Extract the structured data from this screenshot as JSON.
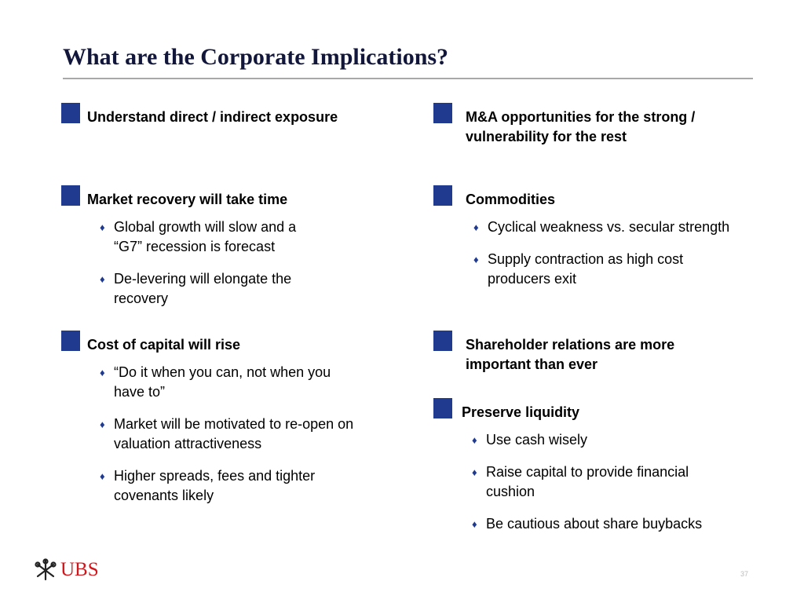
{
  "title": "What are the Corporate Implications?",
  "colors": {
    "square": "#1f3a8f",
    "logo_red": "#d0161b",
    "title": "#11163a"
  },
  "left_column": [
    {
      "heading": "Understand direct / indirect exposure",
      "bullets": []
    },
    {
      "heading": "Market recovery will take time",
      "bullets": [
        "Global growth will slow and a “G7” recession is forecast",
        "De-levering will elongate the recovery"
      ]
    },
    {
      "heading": "Cost of capital will rise",
      "bullets": [
        "“Do it when you can, not when you have to”",
        "Market will be motivated to re-open on valuation attractiveness",
        "Higher spreads, fees and tighter covenants likely"
      ]
    }
  ],
  "right_column": [
    {
      "heading": "M&A opportunities for the strong / vulnerability for the rest",
      "bullets": []
    },
    {
      "heading": "Commodities",
      "bullets": [
        "Cyclical weakness vs. secular strength",
        "Supply contraction as high cost producers exit"
      ]
    },
    {
      "heading": "Shareholder relations are more important than ever",
      "bullets": []
    },
    {
      "heading": "Preserve liquidity",
      "bullets": [
        "Use cash wisely",
        "Raise capital to provide financial cushion",
        "Be cautious about share buybacks"
      ]
    }
  ],
  "bullet_icon": "diamond-icon",
  "logo": {
    "text": "UBS",
    "icon": "keys-icon"
  },
  "page_number": "37"
}
